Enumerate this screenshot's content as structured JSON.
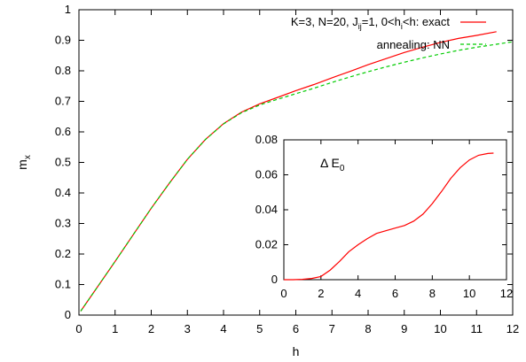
{
  "chart_data": [
    {
      "type": "line",
      "xlabel": "h",
      "ylabel": "m",
      "ylabel_sub": "x",
      "xlim": [
        0,
        12
      ],
      "ylim": [
        0,
        1
      ],
      "x_ticks": [
        "0",
        "1",
        "2",
        "3",
        "4",
        "5",
        "6",
        "7",
        "8",
        "9",
        "10",
        "11",
        "12"
      ],
      "y_ticks": [
        "0",
        "0.1",
        "0.2",
        "0.3",
        "0.4",
        "0.5",
        "0.6",
        "0.7",
        "0.8",
        "0.9",
        "1"
      ],
      "grid": false,
      "legend_position": "top-right",
      "series": [
        {
          "name_parts": [
            "K=3, N=20, J",
            "ij",
            "=1, 0<h",
            "i",
            "<h: exact"
          ],
          "color": "#ff0000",
          "dash": "solid",
          "x": [
            0.05,
            0.5,
            1,
            1.5,
            2,
            2.5,
            3,
            3.5,
            4,
            4.5,
            5,
            5.5,
            6,
            6.5,
            7,
            7.5,
            8,
            8.5,
            9,
            9.5,
            10,
            10.5,
            11,
            11.55
          ],
          "y": [
            0.013,
            0.09,
            0.176,
            0.263,
            0.35,
            0.432,
            0.51,
            0.575,
            0.627,
            0.665,
            0.692,
            0.713,
            0.735,
            0.755,
            0.777,
            0.798,
            0.82,
            0.84,
            0.86,
            0.877,
            0.893,
            0.906,
            0.916,
            0.928
          ]
        },
        {
          "name": "annealing: NN",
          "color": "#00cc00",
          "dash": "dashed",
          "x": [
            0.05,
            0.5,
            1,
            1.5,
            2,
            2.5,
            3,
            3.5,
            4,
            4.5,
            5,
            5.5,
            6,
            6.5,
            7,
            7.5,
            8,
            8.5,
            9,
            9.5,
            10,
            10.5,
            11,
            11.55,
            12
          ],
          "y": [
            0.013,
            0.09,
            0.176,
            0.263,
            0.35,
            0.432,
            0.51,
            0.575,
            0.626,
            0.663,
            0.688,
            0.707,
            0.725,
            0.743,
            0.762,
            0.78,
            0.797,
            0.813,
            0.828,
            0.842,
            0.855,
            0.867,
            0.877,
            0.887,
            0.895
          ]
        }
      ]
    },
    {
      "type": "line",
      "annotation_parts": [
        "Δ E",
        "0"
      ],
      "xlim": [
        0,
        12
      ],
      "ylim": [
        0,
        0.08
      ],
      "x_ticks": [
        "0",
        "2",
        "4",
        "6",
        "8",
        "10",
        "12"
      ],
      "y_ticks": [
        "0",
        "0.02",
        "0.04",
        "0.06",
        "0.08"
      ],
      "grid": false,
      "series": [
        {
          "color": "#ff0000",
          "x": [
            0,
            0.5,
            1,
            1.5,
            2,
            2.5,
            3,
            3.5,
            4,
            4.5,
            5,
            5.5,
            6,
            6.5,
            7,
            7.5,
            8,
            8.5,
            9,
            9.5,
            10,
            10.5,
            11,
            11.3
          ],
          "y": [
            0,
            0,
            0.0002,
            0.0007,
            0.0018,
            0.0055,
            0.0105,
            0.016,
            0.02,
            0.0235,
            0.0265,
            0.028,
            0.0295,
            0.031,
            0.0335,
            0.0375,
            0.0435,
            0.0505,
            0.058,
            0.064,
            0.0685,
            0.0712,
            0.0722,
            0.0724
          ]
        }
      ]
    }
  ]
}
